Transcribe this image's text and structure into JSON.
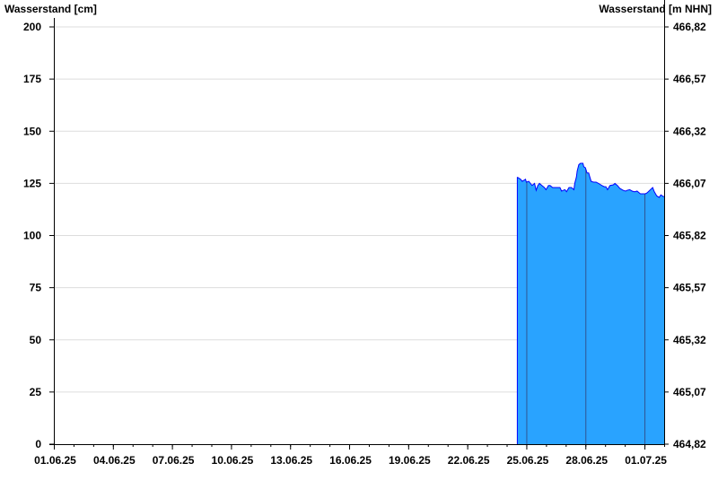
{
  "chart_data": {
    "type": "area",
    "ylabel_left": "Wasserstand [cm]",
    "ylabel_right": "Wasserstand [m NHN]",
    "ylim": [
      0,
      200
    ],
    "yticks": [
      0,
      25,
      50,
      75,
      100,
      125,
      150,
      175,
      200
    ],
    "yticks_right": [
      "464,82",
      "465,07",
      "465,32",
      "465,57",
      "465,82",
      "466,07",
      "466,32",
      "466,57",
      "466,82"
    ],
    "xlim": [
      "2025-06-01T00:00",
      "2025-07-02T00:00"
    ],
    "xticks": [
      {
        "date": "2025-06-01",
        "label": "01.06.25"
      },
      {
        "date": "2025-06-04",
        "label": "04.06.25"
      },
      {
        "date": "2025-06-07",
        "label": "07.06.25"
      },
      {
        "date": "2025-06-10",
        "label": "10.06.25"
      },
      {
        "date": "2025-06-13",
        "label": "13.06.25"
      },
      {
        "date": "2025-06-16",
        "label": "16.06.25"
      },
      {
        "date": "2025-06-19",
        "label": "19.06.25"
      },
      {
        "date": "2025-06-22",
        "label": "22.06.25"
      },
      {
        "date": "2025-06-25",
        "label": "25.06.25"
      },
      {
        "date": "2025-06-28",
        "label": "28.06.25"
      },
      {
        "date": "2025-07-01",
        "label": "01.07.25"
      }
    ],
    "grid": "horizontal",
    "colors": {
      "fill": "#29a3ff",
      "line": "#0000ff",
      "grid": "#dddddd"
    },
    "series": [
      {
        "points": [
          [
            "2025-06-24T13:00",
            128
          ],
          [
            "2025-06-24T17:00",
            127
          ],
          [
            "2025-06-24T19:00",
            126
          ],
          [
            "2025-06-24T23:00",
            127
          ],
          [
            "2025-06-25T00:00",
            125.6
          ],
          [
            "2025-06-25T03:00",
            126
          ],
          [
            "2025-06-25T05:00",
            125
          ],
          [
            "2025-06-25T07:00",
            124
          ],
          [
            "2025-06-25T10:00",
            125
          ],
          [
            "2025-06-25T12:00",
            121.7
          ],
          [
            "2025-06-25T14:00",
            124
          ],
          [
            "2025-06-25T16:00",
            125
          ],
          [
            "2025-06-25T19:00",
            124
          ],
          [
            "2025-06-25T22:00",
            123
          ],
          [
            "2025-06-26T00:00",
            122
          ],
          [
            "2025-06-26T03:00",
            124
          ],
          [
            "2025-06-26T05:00",
            124
          ],
          [
            "2025-06-26T08:00",
            123
          ],
          [
            "2025-06-26T13:00",
            123
          ],
          [
            "2025-06-26T17:00",
            123
          ],
          [
            "2025-06-26T19:00",
            121.3
          ],
          [
            "2025-06-26T23:00",
            122
          ],
          [
            "2025-06-27T01:00",
            121
          ],
          [
            "2025-06-27T04:00",
            123
          ],
          [
            "2025-06-27T07:00",
            123
          ],
          [
            "2025-06-27T10:00",
            122
          ],
          [
            "2025-06-27T11:00",
            125
          ],
          [
            "2025-06-27T13:00",
            128
          ],
          [
            "2025-06-27T14:00",
            131
          ],
          [
            "2025-06-27T16:00",
            134
          ],
          [
            "2025-06-27T18:00",
            134.6
          ],
          [
            "2025-06-27T21:00",
            134.6
          ],
          [
            "2025-06-27T22:00",
            133
          ],
          [
            "2025-06-28T00:00",
            132.5
          ],
          [
            "2025-06-28T02:00",
            130
          ],
          [
            "2025-06-28T04:00",
            130
          ],
          [
            "2025-06-28T05:00",
            128.6
          ],
          [
            "2025-06-28T07:00",
            126
          ],
          [
            "2025-06-28T10:00",
            125.6
          ],
          [
            "2025-06-28T13:00",
            125.6
          ],
          [
            "2025-06-28T16:00",
            125
          ],
          [
            "2025-06-28T20:00",
            124
          ],
          [
            "2025-06-28T23:00",
            123.4
          ],
          [
            "2025-06-29T01:00",
            123.4
          ],
          [
            "2025-06-29T03:00",
            122
          ],
          [
            "2025-06-29T06:00",
            124
          ],
          [
            "2025-06-29T10:00",
            124.3
          ],
          [
            "2025-06-29T12:00",
            125
          ],
          [
            "2025-06-29T15:00",
            124
          ],
          [
            "2025-06-29T18:00",
            122.6
          ],
          [
            "2025-06-29T22:00",
            121.7
          ],
          [
            "2025-06-30T01:00",
            121.3
          ],
          [
            "2025-06-30T03:00",
            121.7
          ],
          [
            "2025-06-30T06:00",
            122
          ],
          [
            "2025-06-30T09:00",
            121.3
          ],
          [
            "2025-06-30T12:00",
            121
          ],
          [
            "2025-06-30T15:00",
            121.3
          ],
          [
            "2025-06-30T19:00",
            120
          ],
          [
            "2025-06-30T22:00",
            120
          ],
          [
            "2025-07-01T01:00",
            120
          ],
          [
            "2025-07-01T03:00",
            120.4
          ],
          [
            "2025-07-01T10:00",
            123
          ],
          [
            "2025-07-01T12:00",
            121
          ],
          [
            "2025-07-01T15:00",
            119
          ],
          [
            "2025-07-01T18:00",
            118.3
          ],
          [
            "2025-07-01T20:00",
            119.5
          ],
          [
            "2025-07-01T23:00",
            118.7
          ]
        ]
      }
    ]
  }
}
